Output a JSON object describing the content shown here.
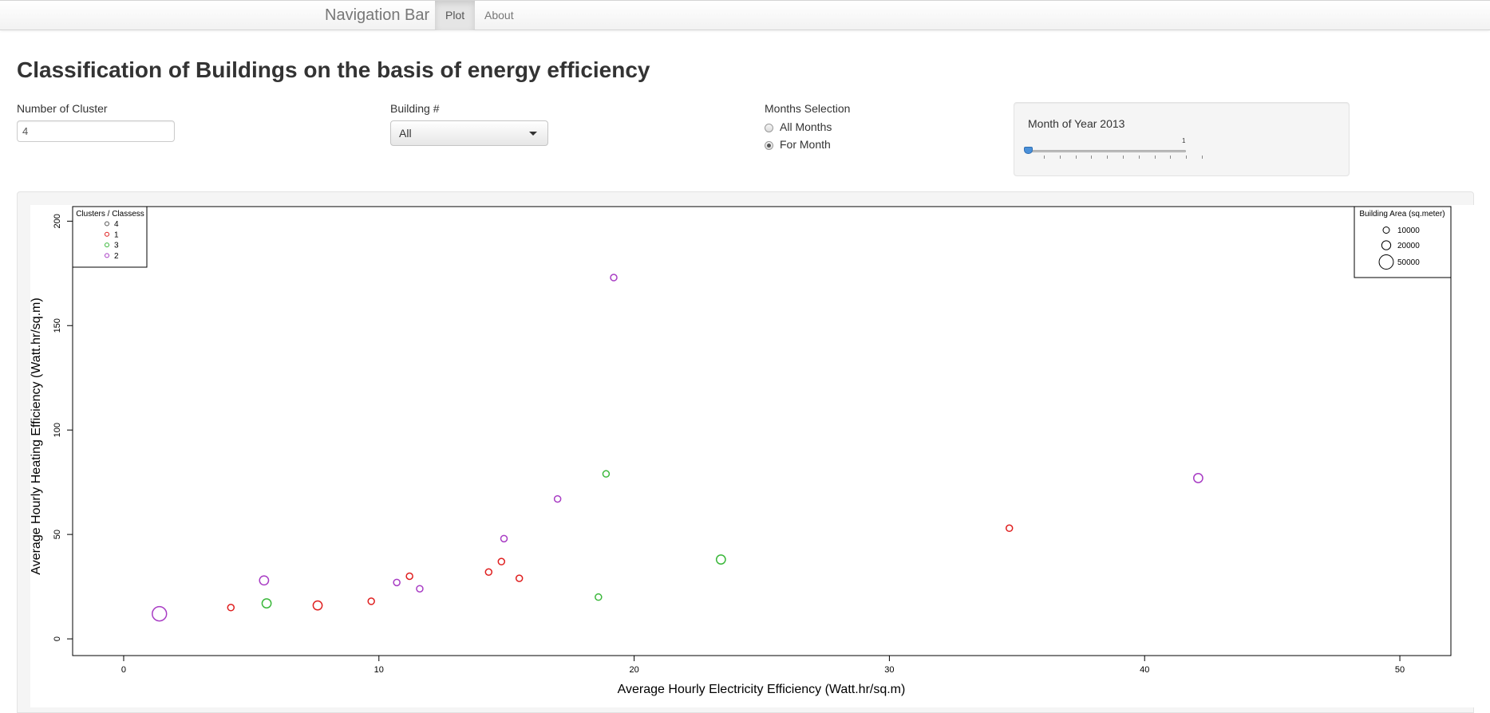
{
  "navbar": {
    "brand": "Navigation Bar",
    "tabs": [
      {
        "label": "Plot",
        "active": true
      },
      {
        "label": "About",
        "active": false
      }
    ]
  },
  "page_title": "Classification of Buildings on the basis of energy efficiency",
  "controls": {
    "clusters": {
      "label": "Number of Cluster",
      "value": "4"
    },
    "building": {
      "label": "Building #",
      "selected": "All"
    },
    "months": {
      "label": "Months Selection",
      "options": [
        {
          "label": "All Months",
          "checked": false
        },
        {
          "label": "For Month",
          "checked": true
        }
      ]
    },
    "month_slider": {
      "label": "Month of Year 2013",
      "value": 1,
      "max_label": "1"
    }
  },
  "colors": {
    "cluster_4": "#555555",
    "cluster_1": "#df1f1f",
    "cluster_3": "#3cb83c",
    "cluster_2": "#a83cc4"
  },
  "chart_data": {
    "type": "scatter",
    "xlabel": "Average Hourly Electricity Efficiency (Watt.hr/sq.m)",
    "ylabel": "Average Hourly Heating Efficiency (Watt.hr/sq.m)",
    "xlim": [
      -2,
      52
    ],
    "ylim": [
      -8,
      207
    ],
    "xticks": [
      "0",
      "10",
      "20",
      "30",
      "40",
      "50"
    ],
    "yticks": [
      "0",
      "50",
      "100",
      "150",
      "200"
    ],
    "legend_clusters": {
      "title": "Clusters / Classess",
      "position": "top-left",
      "entries": [
        {
          "label": "4",
          "cluster": "4"
        },
        {
          "label": "1",
          "cluster": "1"
        },
        {
          "label": "3",
          "cluster": "3"
        },
        {
          "label": "2",
          "cluster": "2"
        }
      ]
    },
    "legend_size": {
      "title": "Building Area (sq.meter)",
      "position": "top-right",
      "entries": [
        {
          "label": "10000",
          "area": 10000
        },
        {
          "label": "20000",
          "area": 20000
        },
        {
          "label": "50000",
          "area": 50000
        }
      ]
    },
    "points": [
      {
        "x": 1.4,
        "y": 12,
        "area": 50000,
        "cluster": "2"
      },
      {
        "x": 4.2,
        "y": 15,
        "area": 10000,
        "cluster": "1"
      },
      {
        "x": 5.5,
        "y": 28,
        "area": 20000,
        "cluster": "2"
      },
      {
        "x": 5.6,
        "y": 17,
        "area": 20000,
        "cluster": "3"
      },
      {
        "x": 7.6,
        "y": 16,
        "area": 20000,
        "cluster": "1"
      },
      {
        "x": 9.7,
        "y": 18,
        "area": 10000,
        "cluster": "1"
      },
      {
        "x": 10.7,
        "y": 27,
        "area": 10000,
        "cluster": "2"
      },
      {
        "x": 11.2,
        "y": 30,
        "area": 10000,
        "cluster": "1"
      },
      {
        "x": 11.6,
        "y": 24,
        "area": 10000,
        "cluster": "2"
      },
      {
        "x": 14.3,
        "y": 32,
        "area": 10000,
        "cluster": "1"
      },
      {
        "x": 14.8,
        "y": 37,
        "area": 10000,
        "cluster": "1"
      },
      {
        "x": 14.9,
        "y": 48,
        "area": 10000,
        "cluster": "2"
      },
      {
        "x": 15.5,
        "y": 29,
        "area": 10000,
        "cluster": "1"
      },
      {
        "x": 17.0,
        "y": 67,
        "area": 10000,
        "cluster": "2"
      },
      {
        "x": 18.6,
        "y": 20,
        "area": 10000,
        "cluster": "3"
      },
      {
        "x": 18.9,
        "y": 79,
        "area": 10000,
        "cluster": "3"
      },
      {
        "x": 19.2,
        "y": 173,
        "area": 10000,
        "cluster": "2"
      },
      {
        "x": 23.4,
        "y": 38,
        "area": 20000,
        "cluster": "3"
      },
      {
        "x": 34.7,
        "y": 53,
        "area": 10000,
        "cluster": "1"
      },
      {
        "x": 42.1,
        "y": 77,
        "area": 20000,
        "cluster": "2"
      }
    ]
  }
}
